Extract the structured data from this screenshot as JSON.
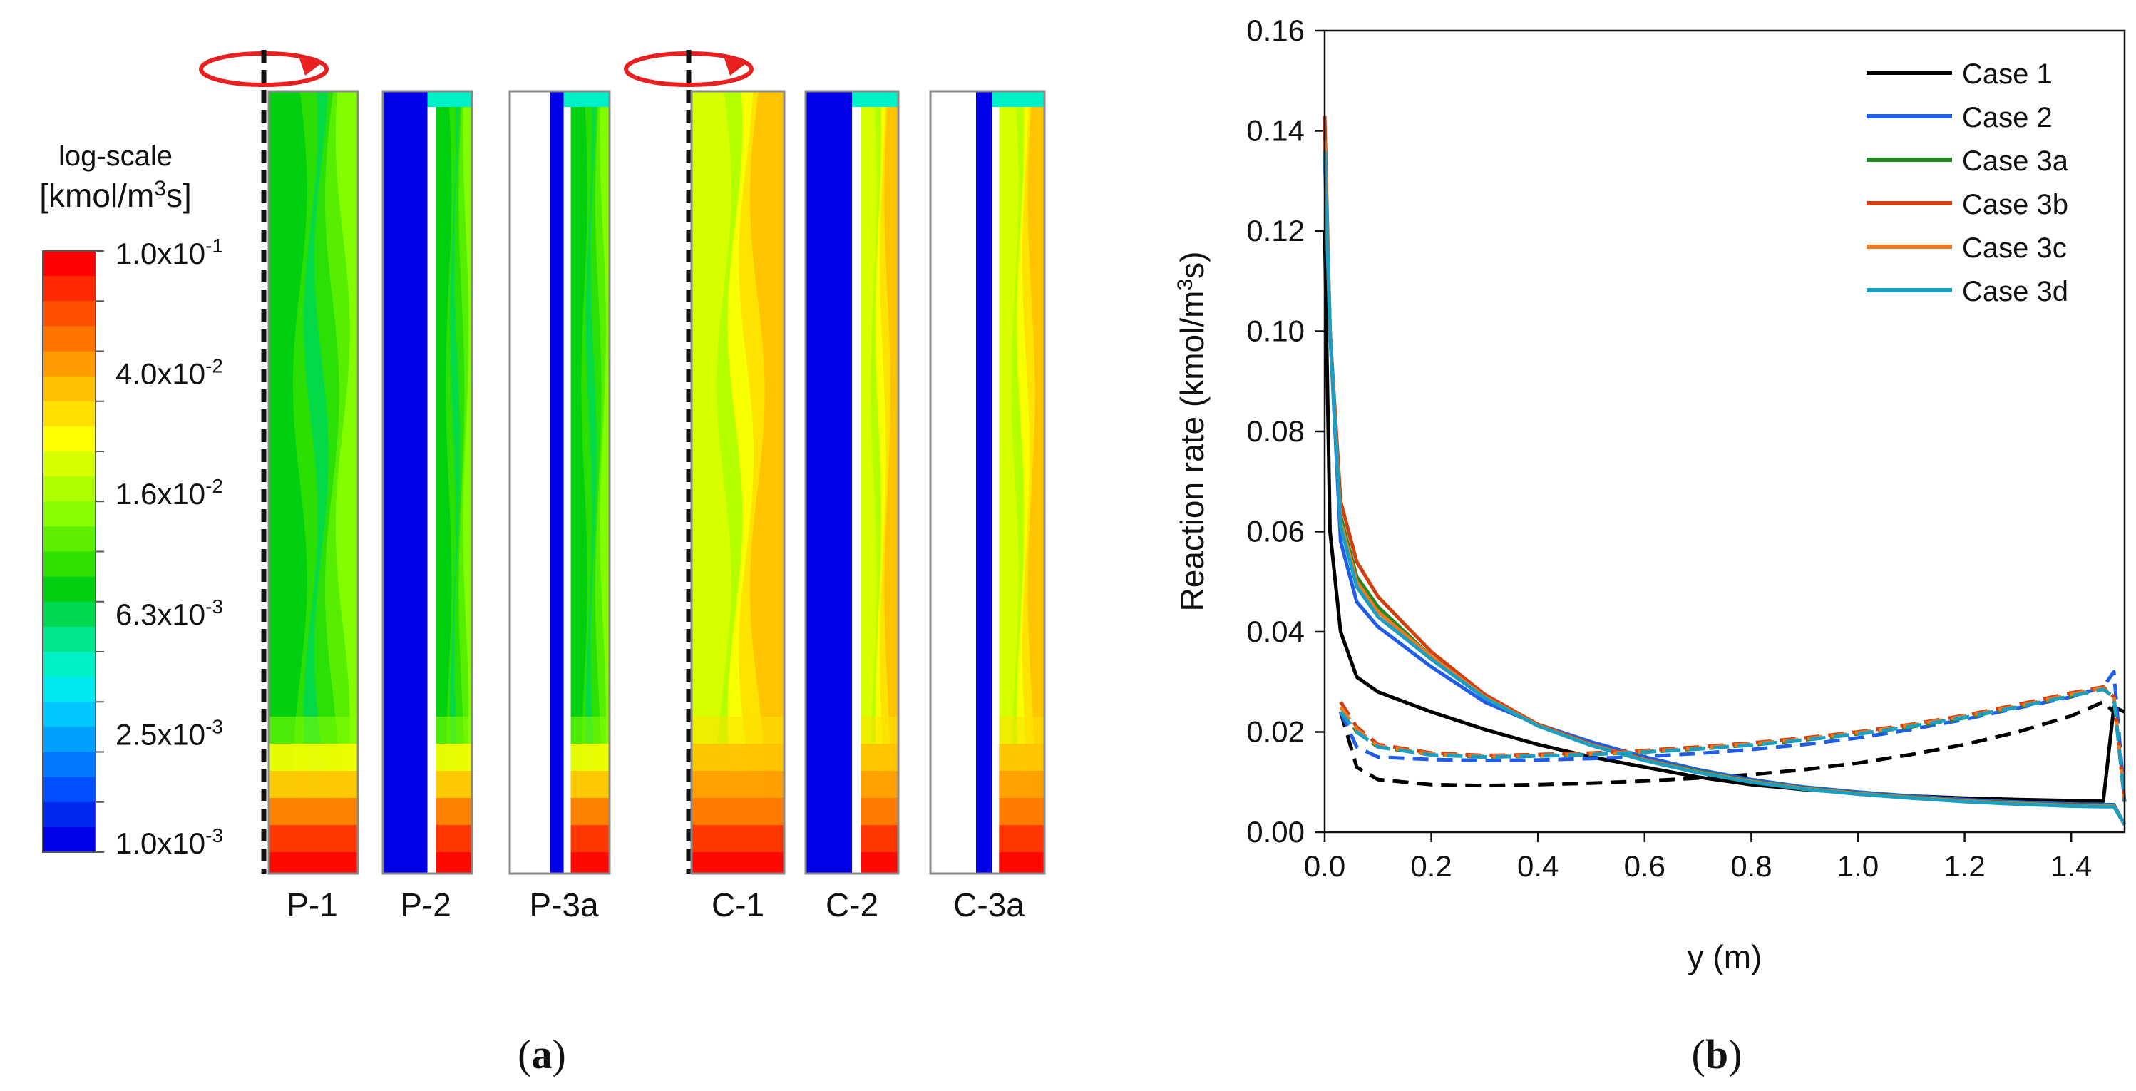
{
  "panel_a": {
    "colorbar": {
      "title_line1": "log-scale",
      "title_line2_prefix": "[kmol/m",
      "title_line2_sup": "3",
      "title_line2_suffix": "s]",
      "labels": [
        {
          "mantissa": "1.0x10",
          "exp": "-1"
        },
        {
          "mantissa": "4.0x10",
          "exp": "-2"
        },
        {
          "mantissa": "1.6x10",
          "exp": "-2"
        },
        {
          "mantissa": "6.3x10",
          "exp": "-3"
        },
        {
          "mantissa": "2.5x10",
          "exp": "-3"
        },
        {
          "mantissa": "1.0x10",
          "exp": "-3"
        }
      ],
      "colors": [
        "#ff0000",
        "#ff2a00",
        "#ff5000",
        "#ff7400",
        "#ff9a00",
        "#ffc000",
        "#ffe000",
        "#ffff00",
        "#d8ff00",
        "#b0ff00",
        "#88ff00",
        "#5cf000",
        "#2fe000",
        "#00d010",
        "#00d850",
        "#00e68c",
        "#00f0c8",
        "#00e8f0",
        "#00c8ff",
        "#00a0ff",
        "#0078ff",
        "#0050ff",
        "#0028f0",
        "#0000e8"
      ]
    },
    "contours": [
      {
        "label": "P-1",
        "type": "P1"
      },
      {
        "label": "P-2",
        "type": "P2"
      },
      {
        "label": "P-3a",
        "type": "P3"
      },
      {
        "label": "C-1",
        "type": "C1"
      },
      {
        "label": "C-2",
        "type": "C2"
      },
      {
        "label": "C-3a",
        "type": "C3"
      }
    ],
    "caption": "a",
    "accent_colors": {
      "rotation_arrow": "#e82020",
      "solid_blue": "#0000e8"
    }
  },
  "chart_data": {
    "type": "line",
    "caption": "b",
    "xlabel": "y (m)",
    "ylabel_prefix": "Reaction rate (kmol/m",
    "ylabel_sup": "3",
    "ylabel_suffix": "s)",
    "xlim": [
      0,
      1.5
    ],
    "ylim": [
      0,
      0.16
    ],
    "xticks": [
      "0.0",
      "0.2",
      "0.4",
      "0.6",
      "0.8",
      "1.0",
      "1.2",
      "1.4"
    ],
    "xtick_values": [
      0,
      0.2,
      0.4,
      0.6,
      0.8,
      1.0,
      1.2,
      1.4
    ],
    "yticks": [
      "0.00",
      "0.02",
      "0.04",
      "0.06",
      "0.08",
      "0.10",
      "0.12",
      "0.14",
      "0.16"
    ],
    "ytick_values": [
      0,
      0.02,
      0.04,
      0.06,
      0.08,
      0.1,
      0.12,
      0.14,
      0.16
    ],
    "legend": [
      {
        "name": "Case 1",
        "color": "#000000"
      },
      {
        "name": "Case 2",
        "color": "#1f5ce8"
      },
      {
        "name": "Case 3a",
        "color": "#1f8a1f"
      },
      {
        "name": "Case 3b",
        "color": "#d2400f"
      },
      {
        "name": "Case 3c",
        "color": "#f07820"
      },
      {
        "name": "Case 3d",
        "color": "#1a9fc0"
      }
    ],
    "series": [
      {
        "name": "Case 1 (solid)",
        "color": "#000000",
        "dash": false,
        "x": [
          0,
          0.01,
          0.03,
          0.06,
          0.1,
          0.2,
          0.3,
          0.4,
          0.5,
          0.6,
          0.7,
          0.8,
          0.9,
          1.0,
          1.1,
          1.2,
          1.3,
          1.4,
          1.46,
          1.48,
          1.5
        ],
        "y": [
          0.12,
          0.06,
          0.04,
          0.031,
          0.028,
          0.024,
          0.0205,
          0.0175,
          0.015,
          0.013,
          0.011,
          0.0095,
          0.0085,
          0.0078,
          0.0072,
          0.0068,
          0.0065,
          0.0063,
          0.0062,
          0.025,
          0.024
        ]
      },
      {
        "name": "Case 1 (dashed)",
        "color": "#000000",
        "dash": true,
        "x": [
          0.03,
          0.06,
          0.1,
          0.2,
          0.3,
          0.4,
          0.5,
          0.6,
          0.7,
          0.8,
          0.9,
          1.0,
          1.1,
          1.2,
          1.3,
          1.4,
          1.46,
          1.48
        ],
        "y": [
          0.024,
          0.013,
          0.0105,
          0.0095,
          0.0093,
          0.0095,
          0.0098,
          0.0102,
          0.0108,
          0.0115,
          0.0125,
          0.0138,
          0.0155,
          0.0175,
          0.02,
          0.0232,
          0.026,
          0.024
        ]
      },
      {
        "name": "Case 2 (solid)",
        "color": "#1f5ce8",
        "dash": false,
        "x": [
          0,
          0.01,
          0.03,
          0.06,
          0.1,
          0.2,
          0.3,
          0.4,
          0.5,
          0.6,
          0.7,
          0.8,
          0.9,
          1.0,
          1.1,
          1.2,
          1.3,
          1.4,
          1.46,
          1.48,
          1.5
        ],
        "y": [
          0.135,
          0.1,
          0.058,
          0.046,
          0.041,
          0.033,
          0.026,
          0.0215,
          0.018,
          0.015,
          0.0125,
          0.0105,
          0.009,
          0.008,
          0.0072,
          0.0065,
          0.006,
          0.0056,
          0.0055,
          0.0055,
          0.0015
        ]
      },
      {
        "name": "Case 2 (dashed)",
        "color": "#1f5ce8",
        "dash": true,
        "x": [
          0.03,
          0.06,
          0.1,
          0.2,
          0.3,
          0.4,
          0.5,
          0.6,
          0.7,
          0.8,
          0.9,
          1.0,
          1.1,
          1.2,
          1.3,
          1.4,
          1.46,
          1.48,
          1.5
        ],
        "y": [
          0.024,
          0.017,
          0.015,
          0.0145,
          0.0143,
          0.0144,
          0.0147,
          0.0151,
          0.0157,
          0.0165,
          0.0175,
          0.0188,
          0.0205,
          0.0225,
          0.0248,
          0.027,
          0.029,
          0.032,
          0.006
        ]
      },
      {
        "name": "Case 3a (solid)",
        "color": "#1f8a1f",
        "dash": false,
        "x": [
          0,
          0.01,
          0.03,
          0.06,
          0.1,
          0.2,
          0.3,
          0.4,
          0.5,
          0.6,
          0.7,
          0.8,
          0.9,
          1.0,
          1.1,
          1.2,
          1.3,
          1.4,
          1.46,
          1.48,
          1.5
        ],
        "y": [
          0.14,
          0.1,
          0.063,
          0.051,
          0.045,
          0.035,
          0.027,
          0.0215,
          0.0175,
          0.0145,
          0.0122,
          0.0102,
          0.0088,
          0.0078,
          0.007,
          0.0063,
          0.0058,
          0.0054,
          0.0053,
          0.0053,
          0.0015
        ]
      },
      {
        "name": "Case 3b (solid)",
        "color": "#d2400f",
        "dash": false,
        "x": [
          0,
          0.01,
          0.03,
          0.06,
          0.1,
          0.2,
          0.3,
          0.4,
          0.5,
          0.6,
          0.7,
          0.8,
          0.9,
          1.0,
          1.1,
          1.2,
          1.3,
          1.4,
          1.46,
          1.48,
          1.5
        ],
        "y": [
          0.143,
          0.1,
          0.066,
          0.054,
          0.047,
          0.036,
          0.0275,
          0.0215,
          0.0175,
          0.0145,
          0.012,
          0.0101,
          0.0087,
          0.0077,
          0.0069,
          0.0062,
          0.0057,
          0.0053,
          0.0052,
          0.0052,
          0.0015
        ]
      },
      {
        "name": "Case 3c (solid)",
        "color": "#f07820",
        "dash": false,
        "x": [
          0,
          0.01,
          0.03,
          0.06,
          0.1,
          0.2,
          0.3,
          0.4,
          0.5,
          0.6,
          0.7,
          0.8,
          0.9,
          1.0,
          1.1,
          1.2,
          1.3,
          1.4,
          1.46,
          1.48,
          1.5
        ],
        "y": [
          0.138,
          0.1,
          0.062,
          0.05,
          0.044,
          0.035,
          0.027,
          0.0213,
          0.0174,
          0.0144,
          0.012,
          0.0101,
          0.0087,
          0.0077,
          0.0069,
          0.0062,
          0.0057,
          0.0053,
          0.0052,
          0.0052,
          0.0015
        ]
      },
      {
        "name": "Case 3d (solid)",
        "color": "#1a9fc0",
        "dash": false,
        "x": [
          0,
          0.01,
          0.03,
          0.06,
          0.1,
          0.2,
          0.3,
          0.4,
          0.5,
          0.6,
          0.7,
          0.8,
          0.9,
          1.0,
          1.1,
          1.2,
          1.3,
          1.4,
          1.46,
          1.48,
          1.5
        ],
        "y": [
          0.136,
          0.1,
          0.061,
          0.049,
          0.043,
          0.0345,
          0.0268,
          0.0212,
          0.0173,
          0.0143,
          0.0119,
          0.01,
          0.0086,
          0.0076,
          0.0068,
          0.0061,
          0.0056,
          0.0052,
          0.0051,
          0.0051,
          0.0015
        ]
      },
      {
        "name": "Case 3a (dashed)",
        "color": "#1f8a1f",
        "dash": true,
        "x": [
          0.03,
          0.06,
          0.1,
          0.2,
          0.3,
          0.4,
          0.5,
          0.6,
          0.7,
          0.8,
          0.9,
          1.0,
          1.1,
          1.2,
          1.3,
          1.4,
          1.46,
          1.48,
          1.5
        ],
        "y": [
          0.025,
          0.02,
          0.017,
          0.0155,
          0.015,
          0.0152,
          0.0155,
          0.016,
          0.0166,
          0.0174,
          0.0184,
          0.0196,
          0.021,
          0.0228,
          0.025,
          0.0272,
          0.029,
          0.027,
          0.006
        ]
      },
      {
        "name": "Case 3b (dashed)",
        "color": "#d2400f",
        "dash": true,
        "x": [
          0.03,
          0.06,
          0.1,
          0.2,
          0.3,
          0.4,
          0.5,
          0.6,
          0.7,
          0.8,
          0.9,
          1.0,
          1.1,
          1.2,
          1.3,
          1.4,
          1.46,
          1.48,
          1.5
        ],
        "y": [
          0.026,
          0.021,
          0.0175,
          0.0158,
          0.0153,
          0.0155,
          0.0158,
          0.0163,
          0.017,
          0.0178,
          0.0188,
          0.02,
          0.0215,
          0.0233,
          0.0255,
          0.0278,
          0.029,
          0.027,
          0.006
        ]
      },
      {
        "name": "Case 3c (dashed)",
        "color": "#f07820",
        "dash": true,
        "x": [
          0.03,
          0.06,
          0.1,
          0.2,
          0.3,
          0.4,
          0.5,
          0.6,
          0.7,
          0.8,
          0.9,
          1.0,
          1.1,
          1.2,
          1.3,
          1.4,
          1.46,
          1.48,
          1.5
        ],
        "y": [
          0.025,
          0.0205,
          0.0172,
          0.0156,
          0.0151,
          0.0153,
          0.0156,
          0.0161,
          0.0168,
          0.0176,
          0.0186,
          0.0198,
          0.0213,
          0.0231,
          0.0252,
          0.0275,
          0.0288,
          0.027,
          0.006
        ]
      },
      {
        "name": "Case 3d (dashed)",
        "color": "#1a9fc0",
        "dash": true,
        "x": [
          0.03,
          0.06,
          0.1,
          0.2,
          0.3,
          0.4,
          0.5,
          0.6,
          0.7,
          0.8,
          0.9,
          1.0,
          1.1,
          1.2,
          1.3,
          1.4,
          1.46,
          1.48,
          1.5
        ],
        "y": [
          0.024,
          0.02,
          0.017,
          0.0154,
          0.015,
          0.0152,
          0.0155,
          0.016,
          0.0166,
          0.0174,
          0.0184,
          0.0196,
          0.0211,
          0.0229,
          0.025,
          0.0272,
          0.0285,
          0.027,
          0.006
        ]
      }
    ]
  }
}
